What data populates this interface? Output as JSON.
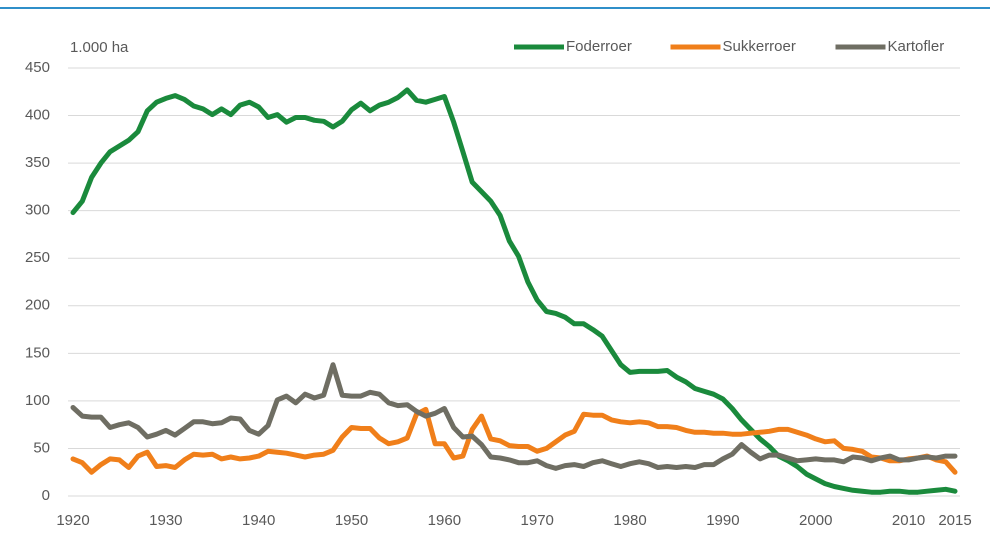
{
  "chart_data": {
    "type": "line",
    "y_label": "1.000 ha",
    "x": [
      1920,
      1921,
      1922,
      1923,
      1924,
      1925,
      1926,
      1927,
      1928,
      1929,
      1930,
      1931,
      1932,
      1933,
      1934,
      1935,
      1936,
      1937,
      1938,
      1939,
      1940,
      1941,
      1942,
      1943,
      1944,
      1945,
      1946,
      1947,
      1948,
      1949,
      1950,
      1951,
      1952,
      1953,
      1954,
      1955,
      1956,
      1957,
      1958,
      1959,
      1960,
      1961,
      1962,
      1963,
      1964,
      1965,
      1966,
      1967,
      1968,
      1969,
      1970,
      1971,
      1972,
      1973,
      1974,
      1975,
      1976,
      1977,
      1978,
      1979,
      1980,
      1981,
      1982,
      1983,
      1984,
      1985,
      1986,
      1987,
      1988,
      1989,
      1990,
      1991,
      1992,
      1993,
      1994,
      1995,
      1996,
      1997,
      1998,
      1999,
      2000,
      2001,
      2002,
      2003,
      2004,
      2005,
      2006,
      2007,
      2008,
      2009,
      2010,
      2011,
      2012,
      2013,
      2014,
      2015
    ],
    "series": [
      {
        "name": "Foderroer",
        "color": "#1a8a3c",
        "values": [
          298,
          310,
          335,
          350,
          362,
          368,
          374,
          383,
          405,
          414,
          418,
          421,
          417,
          410,
          407,
          401,
          407,
          401,
          411,
          414,
          409,
          398,
          401,
          393,
          398,
          398,
          395,
          394,
          388,
          394,
          406,
          413,
          405,
          411,
          414,
          419,
          427,
          416,
          414,
          417,
          420,
          393,
          362,
          330,
          320,
          310,
          295,
          268,
          252,
          225,
          206,
          194,
          192,
          188,
          181,
          181,
          175,
          168,
          153,
          138,
          130,
          131,
          131,
          131,
          132,
          125,
          120,
          113,
          110,
          107,
          102,
          92,
          80,
          70,
          60,
          52,
          42,
          37,
          31,
          23,
          18,
          13,
          10,
          8,
          6,
          5,
          4,
          4,
          5,
          5,
          4,
          4,
          5,
          6,
          7,
          5
        ]
      },
      {
        "name": "Sukkerroer",
        "color": "#f07f1a",
        "values": [
          39,
          35,
          25,
          33,
          39,
          38,
          30,
          42,
          46,
          31,
          32,
          30,
          38,
          44,
          43,
          44,
          39,
          41,
          39,
          40,
          42,
          47,
          46,
          45,
          43,
          41,
          43,
          44,
          48,
          62,
          72,
          71,
          71,
          61,
          55,
          57,
          61,
          86,
          91,
          55,
          55,
          40,
          42,
          70,
          84,
          60,
          58,
          53,
          52,
          52,
          47,
          50,
          57,
          64,
          68,
          86,
          85,
          85,
          80,
          78,
          77,
          78,
          77,
          73,
          73,
          72,
          69,
          67,
          67,
          66,
          66,
          65,
          65,
          66,
          67,
          68,
          70,
          70,
          67,
          64,
          60,
          57,
          58,
          50,
          49,
          47,
          41,
          40,
          37,
          37,
          39,
          40,
          42,
          38,
          36,
          25
        ]
      },
      {
        "name": "Kartofler",
        "color": "#6f6e63",
        "values": [
          93,
          84,
          83,
          83,
          72,
          75,
          77,
          72,
          62,
          65,
          69,
          64,
          71,
          78,
          78,
          76,
          77,
          82,
          81,
          69,
          65,
          74,
          101,
          105,
          98,
          107,
          103,
          106,
          138,
          106,
          105,
          105,
          109,
          107,
          98,
          95,
          96,
          89,
          84,
          87,
          92,
          72,
          62,
          63,
          54,
          41,
          40,
          38,
          35,
          35,
          37,
          32,
          29,
          32,
          33,
          31,
          35,
          37,
          34,
          31,
          34,
          36,
          34,
          30,
          31,
          30,
          31,
          30,
          33,
          33,
          39,
          44,
          54,
          46,
          39,
          43,
          43,
          40,
          37,
          38,
          39,
          38,
          38,
          36,
          41,
          40,
          37,
          40,
          42,
          38,
          38,
          40,
          41,
          40,
          42,
          42
        ]
      }
    ],
    "xlim": [
      1920,
      2015
    ],
    "xticks": [
      1920,
      1930,
      1940,
      1950,
      1960,
      1970,
      1980,
      1990,
      2000,
      2010,
      2015
    ],
    "ylim": [
      0,
      450
    ],
    "yticks": [
      0,
      50,
      100,
      150,
      200,
      250,
      300,
      350,
      400,
      450
    ],
    "grid": true,
    "legend": "top-right"
  }
}
